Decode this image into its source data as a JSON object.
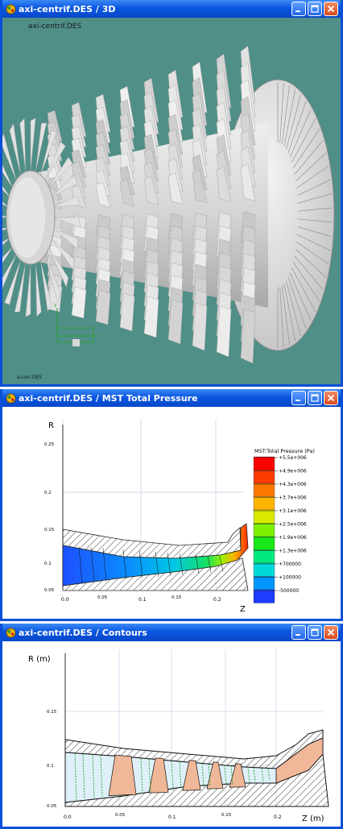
{
  "windows": {
    "view3d": {
      "title": "axi-centrif.DES / 3D",
      "label_top": "axi-centrif.DES",
      "label_bottom": "a-ceri.DES",
      "axis_y": "y"
    },
    "total_pressure": {
      "title": "axi-centrif.DES / MST Total Pressure",
      "legend_title": "MST:Total Pressure  (Pa)",
      "legend": [
        {
          "label": "+5.5e+006",
          "color": "#ff0000"
        },
        {
          "label": "+4.9e+006",
          "color": "#ff3c00"
        },
        {
          "label": "+4.3e+006",
          "color": "#ff7800"
        },
        {
          "label": "+3.7e+006",
          "color": "#ffb400"
        },
        {
          "label": "+3.1e+006",
          "color": "#d8e800"
        },
        {
          "label": "+2.5e+006",
          "color": "#7cf000"
        },
        {
          "label": "+1.9e+006",
          "color": "#18e818"
        },
        {
          "label": "+1.3e+006",
          "color": "#00e87c"
        },
        {
          "label": "+700000",
          "color": "#00d8d8"
        },
        {
          "label": "+100000",
          "color": "#0096ff"
        },
        {
          "label": "-500000",
          "color": "#1e3cff"
        }
      ],
      "y_axis_label": "R",
      "x_axis_label": "Z",
      "y_ticks": [
        "0.25",
        "0.2",
        "0.15",
        "0.1",
        "0.05"
      ],
      "x_ticks": [
        "0.0",
        "0.05",
        "0.1",
        "0.15",
        "0.2"
      ]
    },
    "contours": {
      "title": "axi-centrif.DES / Contours",
      "y_axis_label": "R (m)",
      "x_axis_label": "Z (m)",
      "y_ticks": [
        "0.15",
        "0.1",
        "0.05"
      ],
      "x_ticks": [
        "0.0",
        "0.05",
        "0.1",
        "0.15",
        "0.2"
      ]
    }
  }
}
